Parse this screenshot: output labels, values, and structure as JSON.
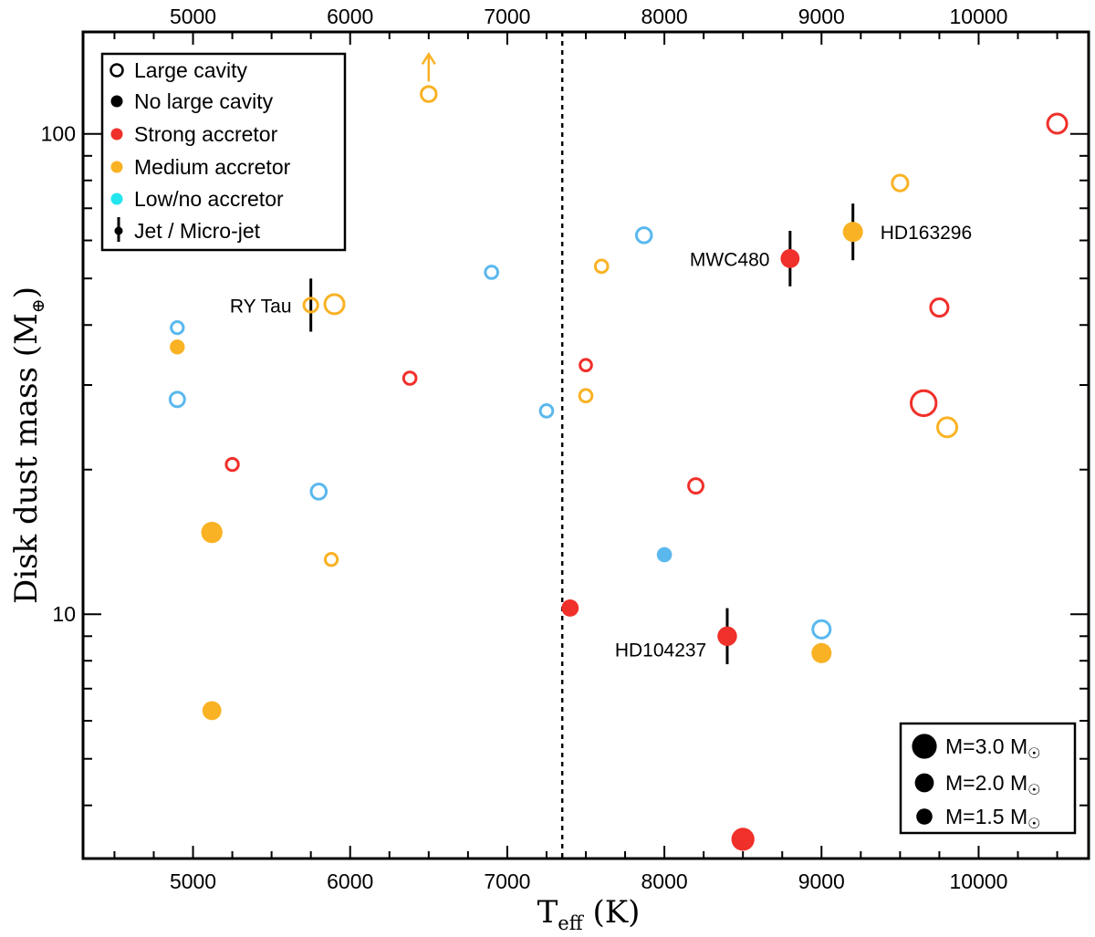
{
  "chart_data": {
    "type": "scatter",
    "title": "",
    "xlabel": "T",
    "xlabel_sub": "eff",
    "xlabel_unit": " (K)",
    "ylabel": "Disk dust mass (M",
    "ylabel_sub": "⊕",
    "ylabel_close": ")",
    "xlim": [
      4300,
      10700
    ],
    "ylim": [
      3.1,
      163
    ],
    "yscale": "log",
    "x_ticks": [
      5000,
      6000,
      7000,
      8000,
      9000,
      10000
    ],
    "x_tick_labels": [
      "5000",
      "6000",
      "7000",
      "8000",
      "9000",
      "10000"
    ],
    "y_major_ticks": [
      10,
      100
    ],
    "y_tick_labels": [
      "10",
      "100"
    ],
    "divider_x": 7350,
    "colors": {
      "strong": "#f0302a",
      "medium": "#f9b224",
      "low": "#5ab8ee",
      "low_legend": "#22e6ee",
      "black": "#000000"
    },
    "points": [
      {
        "teff": 5120,
        "mass": 14.8,
        "cls": "medium",
        "cavity": false,
        "mstar": 2.4
      },
      {
        "teff": 5120,
        "mass": 6.3,
        "cls": "medium",
        "cavity": false,
        "mstar": 2.0
      },
      {
        "teff": 4900,
        "mass": 36.0,
        "cls": "medium",
        "cavity": false,
        "mstar": 1.3
      },
      {
        "teff": 4900,
        "mass": 39.5,
        "cls": "low",
        "cavity": true,
        "mstar": 1.3
      },
      {
        "teff": 4900,
        "mass": 28.0,
        "cls": "low",
        "cavity": true,
        "mstar": 1.7
      },
      {
        "teff": 5250,
        "mass": 20.5,
        "cls": "strong",
        "cavity": true,
        "mstar": 1.3
      },
      {
        "teff": 5800,
        "mass": 18.0,
        "cls": "low",
        "cavity": true,
        "mstar": 1.8
      },
      {
        "teff": 5880,
        "mass": 13.0,
        "cls": "medium",
        "cavity": true,
        "mstar": 1.3
      },
      {
        "teff": 5750,
        "mass": 44.0,
        "cls": "medium",
        "cavity": true,
        "mstar": 1.6,
        "jet": true,
        "label": "RY Tau"
      },
      {
        "teff": 5900,
        "mass": 44.2,
        "cls": "medium",
        "cavity": true,
        "mstar": 2.5
      },
      {
        "teff": 6380,
        "mass": 31.0,
        "cls": "strong",
        "cavity": true,
        "mstar": 1.35
      },
      {
        "teff": 6500,
        "mass": 121.0,
        "cls": "medium",
        "cavity": true,
        "mstar": 1.8,
        "lower_limit": true
      },
      {
        "teff": 6900,
        "mass": 51.5,
        "cls": "low",
        "cavity": true,
        "mstar": 1.35
      },
      {
        "teff": 7250,
        "mass": 26.5,
        "cls": "low",
        "cavity": true,
        "mstar": 1.35
      },
      {
        "teff": 7400,
        "mass": 10.3,
        "cls": "strong",
        "cavity": false,
        "mstar": 1.7
      },
      {
        "teff": 7500,
        "mass": 33.0,
        "cls": "strong",
        "cavity": true,
        "mstar": 1.2
      },
      {
        "teff": 7500,
        "mass": 28.5,
        "cls": "medium",
        "cavity": true,
        "mstar": 1.35
      },
      {
        "teff": 7600,
        "mass": 53.0,
        "cls": "medium",
        "cavity": true,
        "mstar": 1.35
      },
      {
        "teff": 7870,
        "mass": 61.5,
        "cls": "low",
        "cavity": true,
        "mstar": 1.8
      },
      {
        "teff": 8000,
        "mass": 13.3,
        "cls": "low",
        "cavity": false,
        "mstar": 1.35
      },
      {
        "teff": 8200,
        "mass": 18.5,
        "cls": "strong",
        "cavity": true,
        "mstar": 1.7
      },
      {
        "teff": 8400,
        "mass": 9.0,
        "cls": "strong",
        "cavity": false,
        "mstar": 2.1,
        "jet": true,
        "label": "HD104237"
      },
      {
        "teff": 8500,
        "mass": 3.4,
        "cls": "strong",
        "cavity": false,
        "mstar": 2.7
      },
      {
        "teff": 8800,
        "mass": 55.0,
        "cls": "strong",
        "cavity": false,
        "mstar": 2.0,
        "jet": true,
        "label": "MWC480"
      },
      {
        "teff": 9000,
        "mass": 9.3,
        "cls": "low",
        "cavity": true,
        "mstar": 2.2
      },
      {
        "teff": 9000,
        "mass": 8.3,
        "cls": "medium",
        "cavity": false,
        "mstar": 2.2
      },
      {
        "teff": 9200,
        "mass": 62.5,
        "cls": "medium",
        "cavity": false,
        "mstar": 2.2,
        "jet": true,
        "label": "HD163296"
      },
      {
        "teff": 9500,
        "mass": 79.0,
        "cls": "medium",
        "cavity": true,
        "mstar": 1.9
      },
      {
        "teff": 9650,
        "mass": 27.5,
        "cls": "strong",
        "cavity": true,
        "mstar": 3.5
      },
      {
        "teff": 9750,
        "mass": 43.5,
        "cls": "strong",
        "cavity": true,
        "mstar": 2.2
      },
      {
        "teff": 9800,
        "mass": 24.5,
        "cls": "medium",
        "cavity": true,
        "mstar": 2.5
      },
      {
        "teff": 10500,
        "mass": 105.0,
        "cls": "strong",
        "cavity": true,
        "mstar": 2.5
      }
    ],
    "legend": {
      "position": "top-left",
      "entries": [
        {
          "key": "large-cavity",
          "label": "Large cavity"
        },
        {
          "key": "no-large-cavity",
          "label": "No large cavity"
        },
        {
          "key": "strong",
          "label": "Strong accretor"
        },
        {
          "key": "medium",
          "label": "Medium accretor"
        },
        {
          "key": "low",
          "label": "Low/no accretor"
        },
        {
          "key": "jet",
          "label": "Jet / Micro-jet"
        }
      ]
    },
    "size_legend": {
      "position": "bottom-right",
      "entries": [
        {
          "mstar": 3.0,
          "prefix": "M=3.0 M",
          "sun": "☉"
        },
        {
          "mstar": 2.0,
          "prefix": "M=2.0 M",
          "sun": "☉"
        },
        {
          "mstar": 1.5,
          "prefix": "M=1.5 M",
          "sun": "☉"
        }
      ]
    }
  }
}
